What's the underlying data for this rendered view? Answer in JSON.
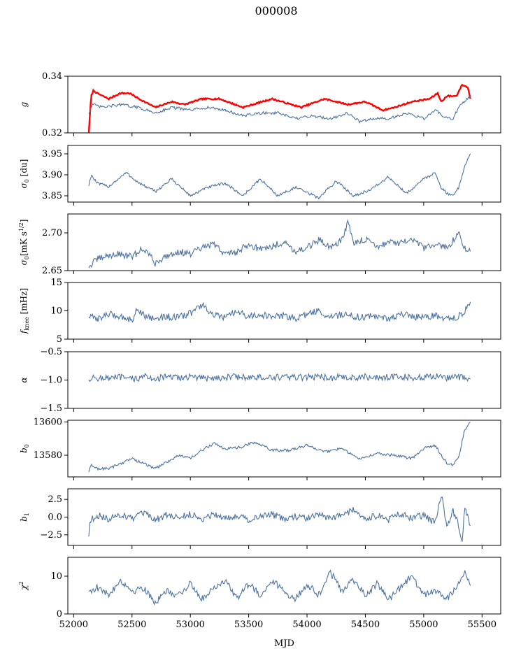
{
  "figure": {
    "title": "000008"
  },
  "colors": {
    "series": "#4c72a0",
    "highlight": "#ff0000",
    "axes": "#000000"
  },
  "chart_data": {
    "type": "line",
    "shared_x": {
      "label": "MJD",
      "lim": [
        51950,
        55660
      ],
      "ticks": [
        52000,
        52500,
        53000,
        53500,
        54000,
        54500,
        55000,
        55500
      ],
      "ticklabels": [
        "52000",
        "52500",
        "53000",
        "53500",
        "54000",
        "54500",
        "55000",
        "55500"
      ],
      "data_range": [
        52130,
        55400
      ]
    },
    "panels": [
      {
        "key": "g",
        "ylabel": "g",
        "ylim": [
          0.32,
          0.34
        ],
        "yticks": [
          0.32,
          0.34
        ],
        "yticklabels": [
          "0.32",
          "0.34"
        ],
        "series": [
          {
            "color": "#ff0000",
            "x": [
              52130,
              52150,
              52170,
              52200,
              52300,
              52400,
              52480,
              52560,
              52700,
              52840,
              52950,
              53100,
              53250,
              53450,
              53700,
              53950,
              54150,
              54350,
              54500,
              54650,
              54750,
              54900,
              55050,
              55120,
              55150,
              55200,
              55280,
              55330,
              55380,
              55400
            ],
            "y": [
              0.32,
              0.333,
              0.335,
              0.334,
              0.332,
              0.334,
              0.334,
              0.332,
              0.329,
              0.331,
              0.33,
              0.332,
              0.332,
              0.329,
              0.332,
              0.329,
              0.332,
              0.33,
              0.331,
              0.328,
              0.329,
              0.331,
              0.332,
              0.334,
              0.331,
              0.333,
              0.333,
              0.337,
              0.336,
              0.332
            ]
          },
          {
            "color": "#4c72a0",
            "x": [
              52130,
              52160,
              52250,
              52400,
              52550,
              52700,
              52840,
              53000,
              53150,
              53300,
              53450,
              53600,
              53750,
              53900,
              54050,
              54200,
              54350,
              54450,
              54550,
              54700,
              54850,
              55000,
              55100,
              55200,
              55250,
              55300,
              55350,
              55400
            ],
            "y": [
              0.327,
              0.33,
              0.329,
              0.33,
              0.329,
              0.327,
              0.329,
              0.328,
              0.329,
              0.328,
              0.326,
              0.327,
              0.327,
              0.325,
              0.326,
              0.325,
              0.327,
              0.324,
              0.325,
              0.325,
              0.327,
              0.325,
              0.328,
              0.325,
              0.325,
              0.329,
              0.331,
              0.333
            ]
          }
        ]
      },
      {
        "key": "sigma0_du",
        "ylabel": "σ0 [du]",
        "ylim": [
          3.835,
          3.97
        ],
        "yticks": [
          3.85,
          3.9,
          3.95
        ],
        "yticklabels": [
          "3.85",
          "3.90",
          "3.95"
        ],
        "series": [
          {
            "color": "#4c72a0",
            "x": [
              52130,
              52150,
              52200,
              52300,
              52450,
              52560,
              52700,
              52840,
              53000,
              53150,
              53300,
              53450,
              53600,
              53750,
              53900,
              54100,
              54250,
              54400,
              54550,
              54700,
              54850,
              55000,
              55100,
              55150,
              55200,
              55250,
              55300,
              55350,
              55400
            ],
            "y": [
              3.875,
              3.9,
              3.88,
              3.872,
              3.905,
              3.88,
              3.86,
              3.89,
              3.85,
              3.87,
              3.88,
              3.85,
              3.89,
              3.85,
              3.87,
              3.845,
              3.885,
              3.85,
              3.865,
              3.895,
              3.855,
              3.89,
              3.905,
              3.87,
              3.855,
              3.85,
              3.87,
              3.92,
              3.95
            ]
          }
        ]
      },
      {
        "key": "sigma0_mk",
        "ylabel": "σ0[mK s^1/2]",
        "ylim": [
          2.65,
          2.725
        ],
        "yticks": [
          2.65,
          2.7
        ],
        "yticklabels": [
          "2.65",
          "2.70"
        ],
        "series": [
          {
            "color": "#4c72a0",
            "x": [
              52130,
              52200,
              52300,
              52400,
              52500,
              52600,
              52700,
              52800,
              52900,
              53000,
              53100,
              53200,
              53300,
              53400,
              53500,
              53600,
              53700,
              53800,
              53900,
              54000,
              54100,
              54200,
              54300,
              54350,
              54400,
              54500,
              54600,
              54700,
              54800,
              54900,
              55000,
              55100,
              55200,
              55300,
              55350,
              55400
            ],
            "y": [
              2.655,
              2.665,
              2.67,
              2.672,
              2.668,
              2.68,
              2.66,
              2.67,
              2.675,
              2.672,
              2.68,
              2.685,
              2.672,
              2.675,
              2.685,
              2.678,
              2.682,
              2.688,
              2.676,
              2.68,
              2.69,
              2.682,
              2.69,
              2.715,
              2.685,
              2.692,
              2.682,
              2.688,
              2.686,
              2.69,
              2.68,
              2.684,
              2.68,
              2.7,
              2.68,
              2.675
            ]
          }
        ]
      },
      {
        "key": "fknee",
        "ylabel": "f_knee [mHz]",
        "ylim": [
          5,
          15
        ],
        "yticks": [
          5,
          10,
          15
        ],
        "yticklabels": [
          "5",
          "10",
          "15"
        ],
        "series": [
          {
            "color": "#4c72a0",
            "x": [
              52130,
              52200,
              52300,
              52400,
              52500,
              52550,
              52600,
              52700,
              52800,
              52900,
              53000,
              53100,
              53200,
              53300,
              53400,
              53500,
              53600,
              53700,
              53800,
              53900,
              54000,
              54100,
              54200,
              54300,
              54400,
              54500,
              54600,
              54700,
              54800,
              54900,
              55000,
              55100,
              55200,
              55300,
              55350,
              55400
            ],
            "y": [
              9.0,
              8.6,
              9.4,
              9.0,
              8.4,
              10.5,
              9.2,
              8.6,
              9.0,
              8.8,
              9.6,
              11.0,
              9.2,
              8.8,
              9.8,
              9.0,
              9.4,
              8.8,
              9.2,
              8.6,
              9.4,
              10.0,
              8.8,
              9.4,
              9.0,
              8.8,
              9.2,
              8.4,
              9.6,
              9.0,
              8.8,
              9.2,
              8.6,
              9.0,
              10.0,
              11.6
            ]
          }
        ]
      },
      {
        "key": "alpha",
        "ylabel": "α",
        "ylim": [
          -1.5,
          -0.5
        ],
        "yticks": [
          -1.5,
          -1.0,
          -0.5
        ],
        "yticklabels": [
          "−1.5",
          "−1.0",
          "−0.5"
        ],
        "series": [
          {
            "color": "#4c72a0",
            "x": [
              52130,
              52200,
              52300,
              52400,
              52500,
              52600,
              52700,
              52800,
              52900,
              53000,
              53100,
              53200,
              53300,
              53400,
              53500,
              53600,
              53700,
              53800,
              53900,
              54000,
              54100,
              54200,
              54300,
              54400,
              54500,
              54600,
              54700,
              54800,
              54900,
              55000,
              55100,
              55200,
              55300,
              55400
            ],
            "y": [
              -0.98,
              -0.96,
              -0.97,
              -0.95,
              -0.99,
              -0.94,
              -0.97,
              -0.95,
              -0.96,
              -0.94,
              -0.97,
              -0.96,
              -0.95,
              -0.94,
              -0.96,
              -0.95,
              -0.97,
              -0.94,
              -0.96,
              -0.95,
              -0.94,
              -0.96,
              -0.95,
              -0.97,
              -0.94,
              -0.96,
              -0.95,
              -0.94,
              -0.96,
              -0.95,
              -0.94,
              -0.96,
              -0.95,
              -0.97
            ]
          }
        ]
      },
      {
        "key": "b0",
        "ylabel": "b0",
        "ylim": [
          13567,
          13601
        ],
        "yticks": [
          13580,
          13600
        ],
        "yticklabels": [
          "13580",
          "13600"
        ],
        "series": [
          {
            "color": "#4c72a0",
            "x": [
              52130,
              52150,
              52200,
              52300,
              52400,
              52500,
              52600,
              52700,
              52800,
              52900,
              53000,
              53100,
              53200,
              53300,
              53450,
              53550,
              53700,
              53850,
              54000,
              54150,
              54300,
              54450,
              54600,
              54750,
              54900,
              55000,
              55100,
              55150,
              55200,
              55250,
              55300,
              55350,
              55400
            ],
            "y": [
              13570,
              13574,
              13572,
              13572,
              13575,
              13578,
              13575,
              13572,
              13576,
              13580,
              13578,
              13583,
              13587,
              13584,
              13585,
              13588,
              13583,
              13583,
              13586,
              13582,
              13584,
              13578,
              13581,
              13580,
              13578,
              13584,
              13586,
              13580,
              13575,
              13574,
              13579,
              13595,
              13600
            ]
          }
        ]
      },
      {
        "key": "b1",
        "ylabel": "b1",
        "ylim": [
          -4,
          4
        ],
        "yticks": [
          -2.5,
          0.0,
          2.5
        ],
        "yticklabels": [
          "−2.5",
          "0.0",
          "2.5"
        ],
        "series": [
          {
            "color": "#4c72a0",
            "x": [
              52130,
              52140,
              52200,
              52300,
              52400,
              52500,
              52600,
              52700,
              52800,
              52900,
              53000,
              53100,
              53200,
              53300,
              53400,
              53500,
              53600,
              53700,
              53800,
              53900,
              54000,
              54100,
              54200,
              54300,
              54400,
              54500,
              54600,
              54700,
              54800,
              54900,
              55000,
              55100,
              55150,
              55200,
              55250,
              55300,
              55330,
              55350,
              55400
            ],
            "y": [
              -2.7,
              -0.5,
              0.3,
              -0.3,
              0.4,
              -0.2,
              0.5,
              -0.4,
              0.3,
              -0.1,
              0.4,
              -0.3,
              0.5,
              -0.2,
              0.3,
              -0.4,
              0.2,
              0.4,
              -0.3,
              0.1,
              -0.2,
              0.4,
              -0.3,
              0.3,
              1.0,
              -0.3,
              0.2,
              -0.4,
              0.5,
              -0.2,
              0.3,
              -0.9,
              3.3,
              -1.5,
              1.0,
              -1.2,
              -3.6,
              1.2,
              -1.0
            ]
          }
        ]
      },
      {
        "key": "chi2",
        "ylabel": "χ2",
        "ylim": [
          0,
          15
        ],
        "yticks": [
          0,
          10
        ],
        "yticklabels": [
          "0",
          "10"
        ],
        "series": [
          {
            "color": "#4c72a0",
            "x": [
              52130,
              52200,
              52300,
              52400,
              52500,
              52600,
              52700,
              52800,
              52900,
              53000,
              53100,
              53200,
              53300,
              53400,
              53500,
              53600,
              53700,
              53800,
              53900,
              54000,
              54100,
              54200,
              54300,
              54400,
              54500,
              54600,
              54700,
              54800,
              54900,
              55000,
              55100,
              55200,
              55300,
              55350,
              55400
            ],
            "y": [
              6,
              7,
              5,
              9,
              6,
              7,
              3,
              6,
              5,
              8,
              4,
              7,
              9,
              4,
              8,
              5,
              9,
              6,
              4,
              8,
              5,
              11,
              6,
              9,
              5,
              8,
              4,
              7,
              10,
              5,
              6,
              4,
              8,
              11,
              8
            ]
          }
        ]
      }
    ]
  }
}
